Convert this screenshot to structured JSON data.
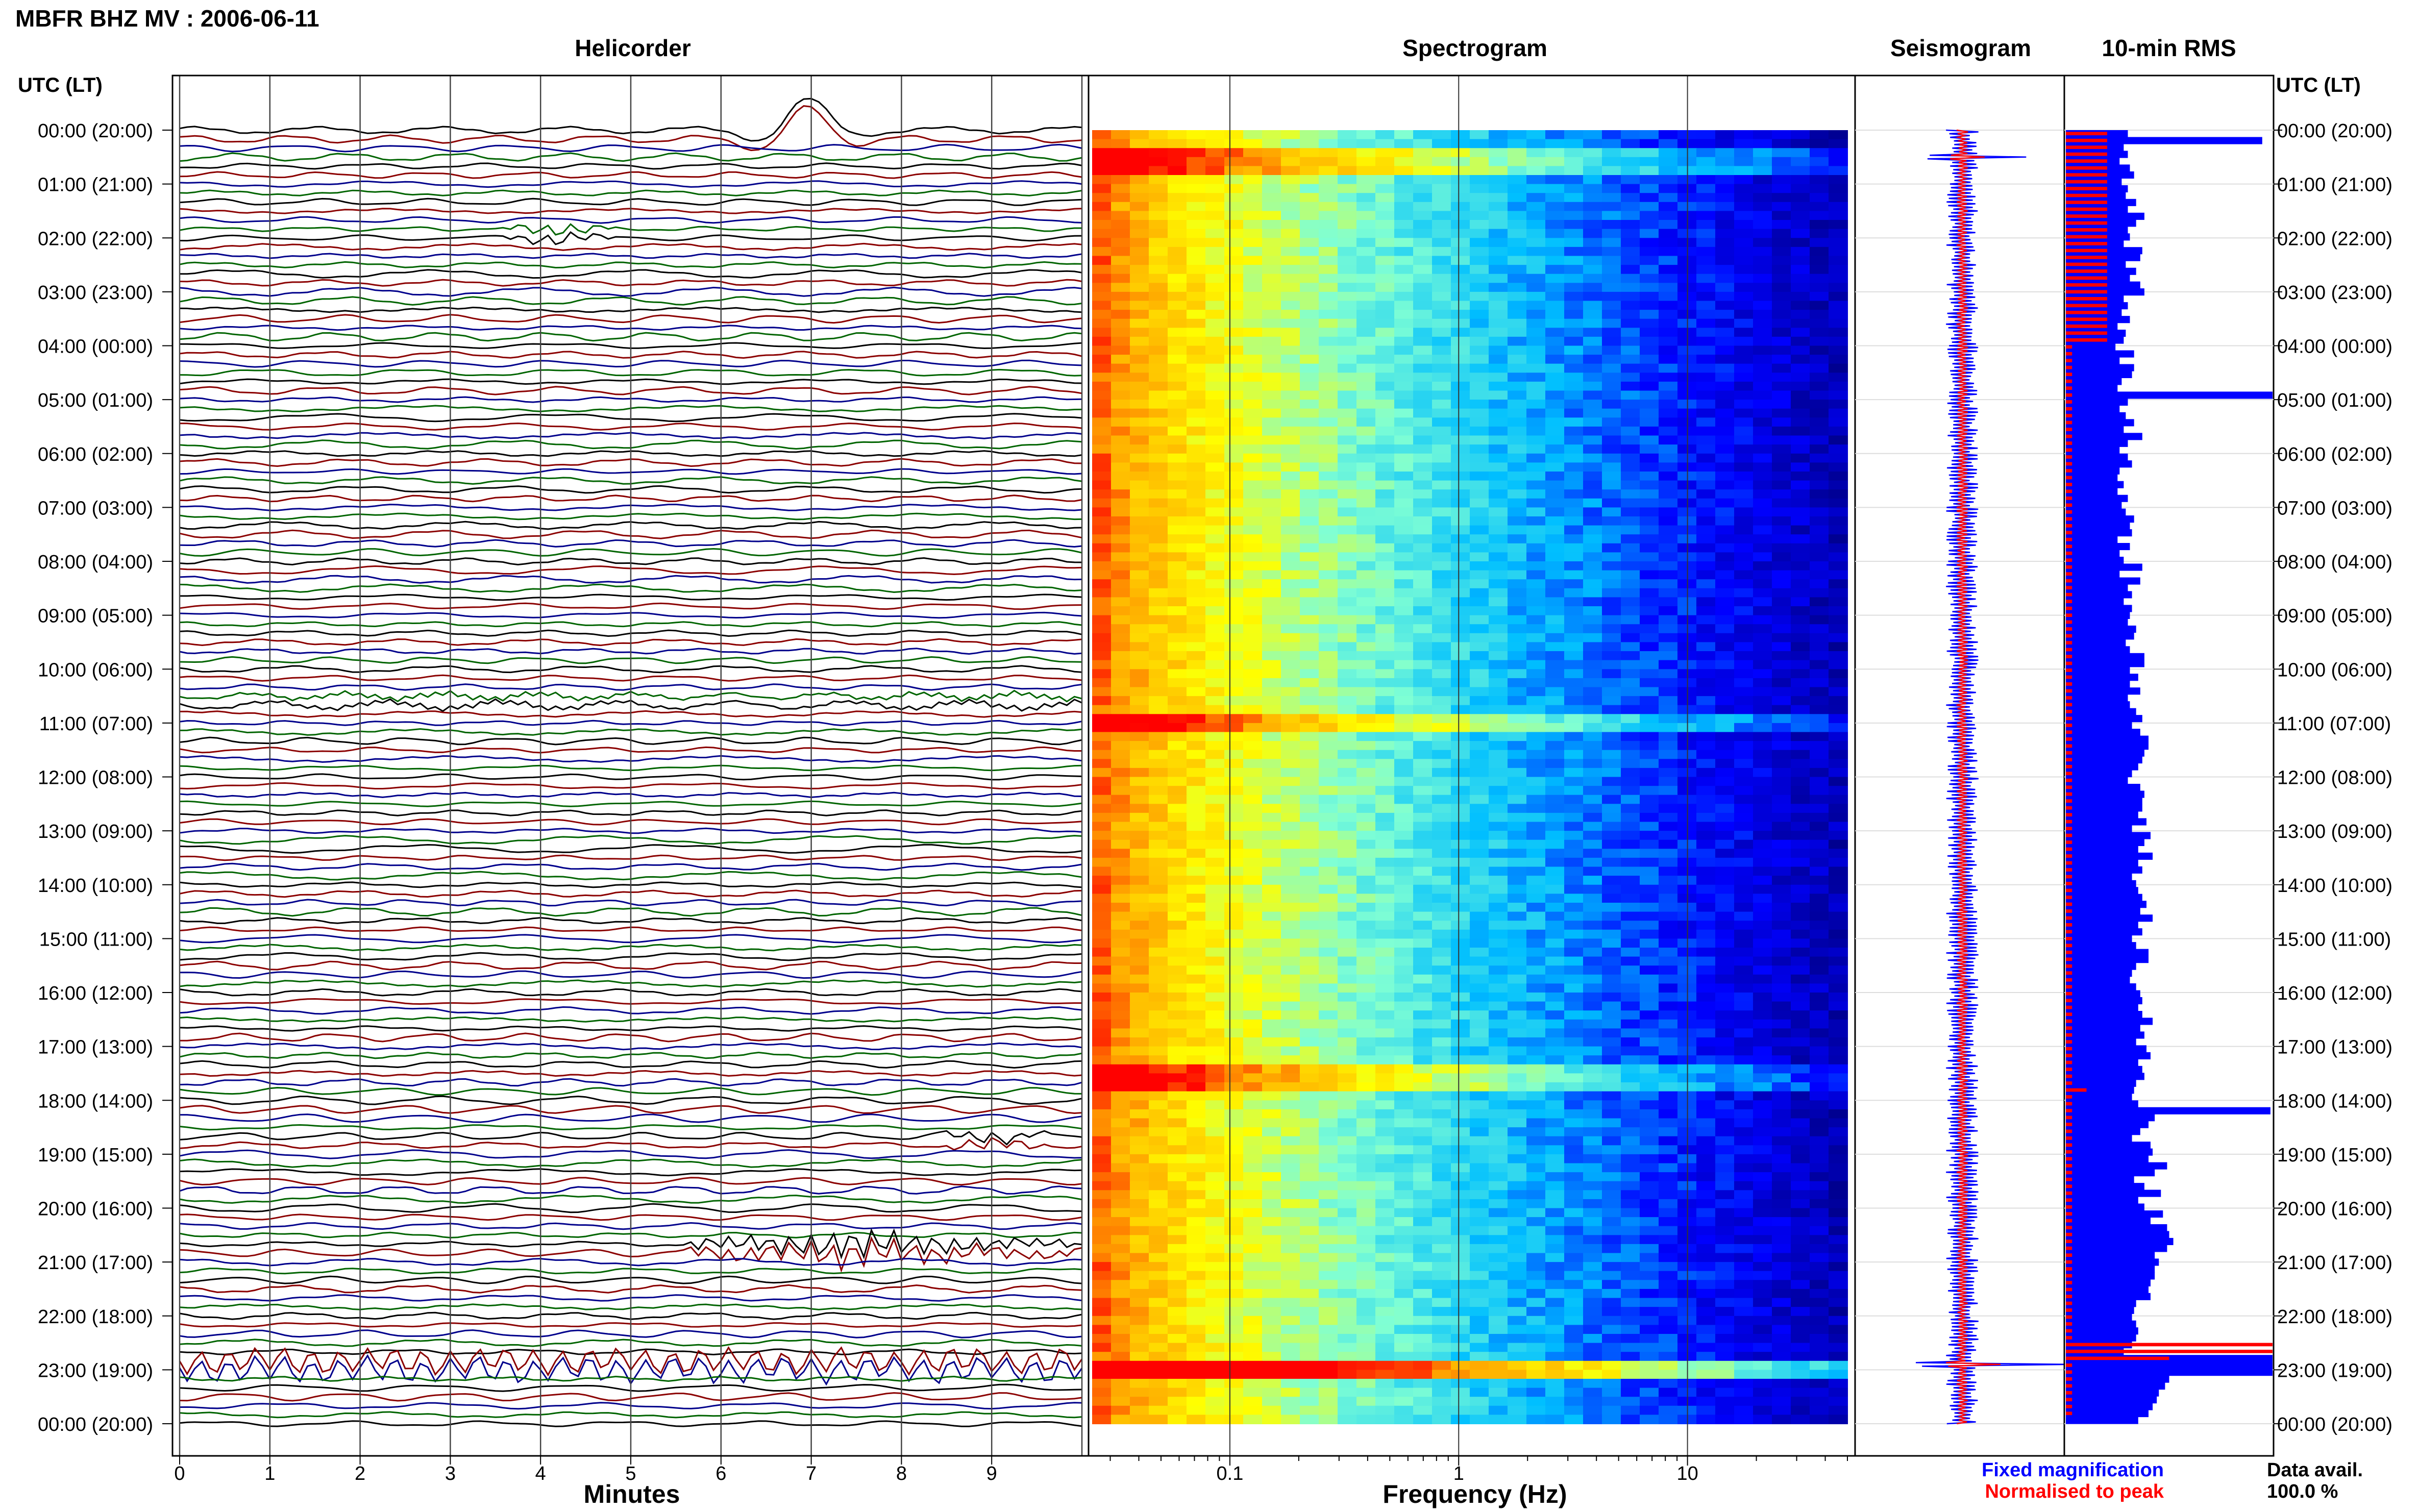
{
  "header": {
    "station_title": "MBFR BHZ MV : 2006-06-11",
    "panel_titles": [
      "Helicorder",
      "Spectrogram",
      "Seismogram",
      "10-min RMS"
    ]
  },
  "time_axis": {
    "label": "UTC (LT)",
    "ticks": [
      "00:00 (20:00)",
      "01:00 (21:00)",
      "02:00 (22:00)",
      "03:00 (23:00)",
      "04:00 (00:00)",
      "05:00 (01:00)",
      "06:00 (02:00)",
      "07:00 (03:00)",
      "08:00 (04:00)",
      "09:00 (05:00)",
      "10:00 (06:00)",
      "11:00 (07:00)",
      "12:00 (08:00)",
      "13:00 (09:00)",
      "14:00 (10:00)",
      "15:00 (11:00)",
      "16:00 (12:00)",
      "17:00 (13:00)",
      "18:00 (14:00)",
      "19:00 (15:00)",
      "20:00 (16:00)",
      "21:00 (17:00)",
      "22:00 (18:00)",
      "23:00 (19:00)",
      "00:00 (20:00)"
    ]
  },
  "legend": {
    "fixed": "Fixed magnification",
    "normalised": "Normalised to peak",
    "fixed_color": "#0000ff",
    "normalised_color": "#ff0000",
    "avail_label": "Data avail.",
    "avail_value": "100.0 %"
  },
  "chart_data": [
    {
      "type": "line",
      "title": "Helicorder",
      "xlabel": "Minutes",
      "x_ticks": [
        "0",
        "1",
        "2",
        "3",
        "4",
        "5",
        "6",
        "7",
        "8",
        "9"
      ],
      "xlim": [
        0,
        10
      ],
      "trace_colors": [
        "#000000",
        "#8b0000",
        "#00008b",
        "#006400"
      ],
      "events": [
        {
          "hour": 0.15,
          "minute": 6.6,
          "kind": "large teleseism"
        },
        {
          "hour": 1.9,
          "minute": 4.2,
          "kind": "event"
        },
        {
          "hour": 10.6,
          "minute": 0.5,
          "kind": "noisy line"
        },
        {
          "hour": 18.8,
          "minute": 9.0,
          "kind": "event"
        },
        {
          "hour": 20.8,
          "minute": 7.5,
          "kind": "swarm"
        },
        {
          "hour": 22.9,
          "minute": 5.0,
          "kind": "very large event"
        }
      ]
    },
    {
      "type": "heatmap",
      "title": "Spectrogram",
      "xlabel": "Frequency (Hz)",
      "x_scale": "log",
      "x_ticks": [
        "0.1",
        "1",
        "10"
      ],
      "xlim": [
        0.025,
        50
      ],
      "colormap": [
        "#00008b",
        "#0000ff",
        "#00bfff",
        "#7fffd4",
        "#ffff00",
        "#ffa500",
        "#ff0000"
      ],
      "strong_rows_hours": [
        0.5,
        10.9,
        17.5,
        22.9
      ]
    },
    {
      "type": "line",
      "title": "Seismogram",
      "series": [
        {
          "name": "Fixed magnification",
          "color": "#0000ff"
        },
        {
          "name": "Normalised to peak",
          "color": "#ff0000"
        }
      ],
      "spike_hours": [
        0.5,
        22.9
      ]
    },
    {
      "type": "bar",
      "title": "10-min RMS",
      "series": [
        {
          "name": "Fixed magnification",
          "color": "#0000ff",
          "values": [
            0.3,
            0.95,
            0.28,
            0.3,
            0.26,
            0.31,
            0.33,
            0.27,
            0.3,
            0.29,
            0.34,
            0.3,
            0.38,
            0.34,
            0.3,
            0.31,
            0.28,
            0.37,
            0.36,
            0.29,
            0.34,
            0.31,
            0.36,
            0.38,
            0.28,
            0.3,
            0.27,
            0.31,
            0.25,
            0.29,
            0.28,
            0.24,
            0.33,
            0.26,
            0.33,
            0.32,
            0.27,
            0.25,
            1.0,
            0.3,
            0.26,
            0.29,
            0.33,
            0.28,
            0.37,
            0.3,
            0.26,
            0.3,
            0.32,
            0.26,
            0.25,
            0.28,
            0.25,
            0.3,
            0.27,
            0.29,
            0.33,
            0.31,
            0.32,
            0.25,
            0.31,
            0.26,
            0.28,
            0.37,
            0.26,
            0.36,
            0.3,
            0.32,
            0.28,
            0.32,
            0.31,
            0.3,
            0.34,
            0.33,
            0.29,
            0.31,
            0.38,
            0.38,
            0.31,
            0.35,
            0.31,
            0.36,
            0.3,
            0.31,
            0.34,
            0.37,
            0.32,
            0.36,
            0.4,
            0.4,
            0.38,
            0.37,
            0.35,
            0.32,
            0.3,
            0.36,
            0.38,
            0.37,
            0.37,
            0.35,
            0.39,
            0.32,
            0.41,
            0.38,
            0.35,
            0.42,
            0.35,
            0.37,
            0.32,
            0.34,
            0.35,
            0.37,
            0.39,
            0.36,
            0.42,
            0.35,
            0.37,
            0.32,
            0.34,
            0.4,
            0.4,
            0.34,
            0.32,
            0.31,
            0.34,
            0.36,
            0.37,
            0.35,
            0.37,
            0.42,
            0.36,
            0.38,
            0.34,
            0.39,
            0.41,
            0.35,
            0.37,
            0.38,
            0.34,
            0.33,
            0.32,
            0.35,
            0.99,
            0.43,
            0.4,
            0.36,
            0.32,
            0.41,
            0.42,
            0.4,
            0.49,
            0.43,
            0.33,
            0.38,
            0.46,
            0.35,
            0.38,
            0.47,
            0.41,
            0.49,
            0.5,
            0.52,
            0.49,
            0.43,
            0.45,
            0.43,
            0.43,
            0.41,
            0.4,
            0.41,
            0.34,
            0.33,
            0.32,
            0.34,
            0.35,
            0.34,
            0.32,
            0.28,
            1.0,
            1.0,
            1.0,
            0.5,
            0.48,
            0.45,
            0.44,
            0.42,
            0.4,
            0.35
          ]
        },
        {
          "name": "Normalised to peak",
          "color": "#ff0000",
          "values": [
            0.2,
            0.2,
            0.2,
            0.2,
            0.2,
            0.2,
            0.2,
            0.2,
            0.2,
            0.2,
            0.2,
            0.2,
            0.2,
            0.2,
            0.2,
            0.2,
            0.2,
            0.2,
            0.2,
            0.2,
            0.2,
            0.2,
            0.2,
            0.2,
            0.2,
            0.2,
            0.2,
            0.2,
            0.2,
            0.2,
            0.2,
            0.03,
            0.03,
            0.03,
            0.03,
            0.03,
            0.03,
            0.03,
            0.03,
            0.03,
            0.03,
            0.03,
            0.03,
            0.03,
            0.03,
            0.03,
            0.03,
            0.03,
            0.03,
            0.03,
            0.03,
            0.03,
            0.03,
            0.03,
            0.03,
            0.03,
            0.03,
            0.03,
            0.03,
            0.03,
            0.03,
            0.03,
            0.03,
            0.03,
            0.03,
            0.03,
            0.03,
            0.03,
            0.03,
            0.03,
            0.03,
            0.03,
            0.03,
            0.03,
            0.03,
            0.03,
            0.03,
            0.03,
            0.03,
            0.03,
            0.03,
            0.03,
            0.03,
            0.03,
            0.03,
            0.03,
            0.03,
            0.03,
            0.03,
            0.03,
            0.03,
            0.03,
            0.03,
            0.03,
            0.03,
            0.03,
            0.03,
            0.03,
            0.03,
            0.03,
            0.03,
            0.03,
            0.03,
            0.03,
            0.03,
            0.03,
            0.03,
            0.03,
            0.03,
            0.03,
            0.03,
            0.03,
            0.03,
            0.03,
            0.03,
            0.03,
            0.03,
            0.03,
            0.03,
            0.03,
            0.03,
            0.03,
            0.03,
            0.03,
            0.03,
            0.03,
            0.03,
            0.03,
            0.03,
            0.03,
            0.03,
            0.03,
            0.03,
            0.03,
            0.03,
            0.03,
            0.03,
            0.03,
            0.03,
            0.1,
            0.03,
            0.03,
            0.03,
            0.03,
            0.03,
            0.03,
            0.03,
            0.03,
            0.03,
            0.03,
            0.03,
            0.03,
            0.03,
            0.03,
            0.03,
            0.03,
            0.03,
            0.03,
            0.03,
            0.03,
            0.03,
            0.03,
            0.03,
            0.03,
            0.03,
            0.03,
            0.03,
            0.03,
            0.03,
            0.03,
            0.03,
            0.03,
            0.03,
            0.03,
            0.03,
            0.03,
            1.0,
            1.0,
            0.5,
            0.03,
            0.03,
            0.03,
            0.03,
            0.03,
            0.03,
            0.03,
            0.03
          ]
        }
      ]
    }
  ]
}
